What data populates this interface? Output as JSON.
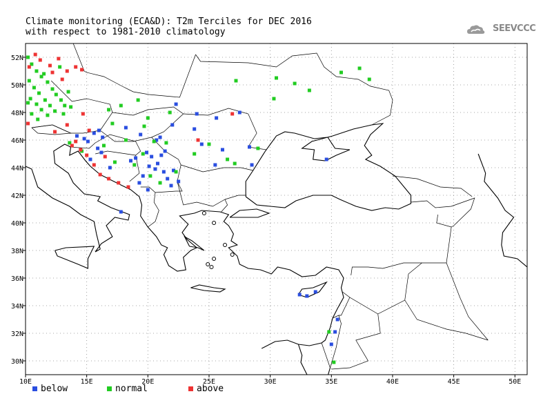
{
  "title": {
    "line1": "Climate monitoring (ECA&D): T2m Terciles for DEC 2016",
    "line2": "with respect to 1981-2010 climatology"
  },
  "logo": {
    "text": "SEEVCCC",
    "icon": "cloud-icon"
  },
  "colors": {
    "below": "#2a4ee0",
    "normal": "#22cc22",
    "above": "#ee3333",
    "frame": "#000000",
    "grid": "#888888"
  },
  "legend": [
    {
      "key": "below",
      "label": "below"
    },
    {
      "key": "normal",
      "label": "normal"
    },
    {
      "key": "above",
      "label": "above"
    }
  ],
  "map": {
    "lon_range": [
      10,
      51
    ],
    "lat_range": [
      29,
      53
    ],
    "x_ticks": [
      {
        "value": 10,
        "label": "10E"
      },
      {
        "value": 15,
        "label": "15E"
      },
      {
        "value": 20,
        "label": "20E"
      },
      {
        "value": 25,
        "label": "25E"
      },
      {
        "value": 30,
        "label": "30E"
      },
      {
        "value": 35,
        "label": "35E"
      },
      {
        "value": 40,
        "label": "40E"
      },
      {
        "value": 45,
        "label": "45E"
      },
      {
        "value": 50,
        "label": "50E"
      }
    ],
    "y_ticks": [
      {
        "value": 30,
        "label": "30N"
      },
      {
        "value": 32,
        "label": "32N"
      },
      {
        "value": 34,
        "label": "34N"
      },
      {
        "value": 36,
        "label": "36N"
      },
      {
        "value": 38,
        "label": "38N"
      },
      {
        "value": 40,
        "label": "40N"
      },
      {
        "value": 42,
        "label": "42N"
      },
      {
        "value": 44,
        "label": "44N"
      },
      {
        "value": 46,
        "label": "46N"
      },
      {
        "value": 48,
        "label": "48N"
      },
      {
        "value": 50,
        "label": "50N"
      },
      {
        "value": 52,
        "label": "52N"
      }
    ],
    "grid": "dotted"
  },
  "stations": {
    "below": [
      [
        14.2,
        46.3
      ],
      [
        14.8,
        46.1
      ],
      [
        15.1,
        45.9
      ],
      [
        15.6,
        46.5
      ],
      [
        16.0,
        46.7
      ],
      [
        16.3,
        46.2
      ],
      [
        15.9,
        45.4
      ],
      [
        16.2,
        45.1
      ],
      [
        15.3,
        44.6
      ],
      [
        16.9,
        44.0
      ],
      [
        17.8,
        40.8
      ],
      [
        18.6,
        44.5
      ],
      [
        19.0,
        44.7
      ],
      [
        19.3,
        42.9
      ],
      [
        19.9,
        45.1
      ],
      [
        20.3,
        44.8
      ],
      [
        20.1,
        44.1
      ],
      [
        20.6,
        43.9
      ],
      [
        20.8,
        44.3
      ],
      [
        21.1,
        44.9
      ],
      [
        21.3,
        43.7
      ],
      [
        21.6,
        43.2
      ],
      [
        21.9,
        42.7
      ],
      [
        22.1,
        43.8
      ],
      [
        22.5,
        43.0
      ],
      [
        20.0,
        42.4
      ],
      [
        19.6,
        43.4
      ],
      [
        21.4,
        45.2
      ],
      [
        22.3,
        48.6
      ],
      [
        22.0,
        47.1
      ],
      [
        24.0,
        47.9
      ],
      [
        25.6,
        47.6
      ],
      [
        23.8,
        46.8
      ],
      [
        24.4,
        45.7
      ],
      [
        25.5,
        44.2
      ],
      [
        26.1,
        45.3
      ],
      [
        27.5,
        48.0
      ],
      [
        28.5,
        44.2
      ],
      [
        28.3,
        45.5
      ],
      [
        34.6,
        44.6
      ],
      [
        32.4,
        34.8
      ],
      [
        33.0,
        34.7
      ],
      [
        33.7,
        35.0
      ],
      [
        35.0,
        31.2
      ],
      [
        35.3,
        32.1
      ],
      [
        35.5,
        33.0
      ],
      [
        21.0,
        46.2
      ],
      [
        19.4,
        46.4
      ],
      [
        18.2,
        46.9
      ],
      [
        20.7,
        46.0
      ]
    ],
    "normal": [
      [
        10.2,
        52.0
      ],
      [
        10.5,
        51.5
      ],
      [
        10.9,
        51.0
      ],
      [
        11.3,
        50.6
      ],
      [
        11.8,
        50.2
      ],
      [
        12.2,
        49.7
      ],
      [
        12.5,
        49.3
      ],
      [
        12.9,
        48.9
      ],
      [
        13.2,
        48.5
      ],
      [
        10.3,
        50.3
      ],
      [
        10.7,
        49.8
      ],
      [
        11.1,
        49.4
      ],
      [
        11.6,
        48.9
      ],
      [
        12.0,
        48.5
      ],
      [
        12.4,
        48.1
      ],
      [
        10.4,
        49.0
      ],
      [
        10.9,
        48.6
      ],
      [
        11.3,
        48.2
      ],
      [
        11.8,
        47.8
      ],
      [
        10.5,
        47.9
      ],
      [
        11.0,
        47.5
      ],
      [
        13.1,
        47.9
      ],
      [
        13.7,
        48.4
      ],
      [
        10.2,
        48.7
      ],
      [
        11.5,
        50.8
      ],
      [
        12.8,
        51.3
      ],
      [
        13.5,
        49.5
      ],
      [
        17.8,
        48.5
      ],
      [
        19.2,
        48.9
      ],
      [
        20.0,
        47.6
      ],
      [
        20.5,
        45.9
      ],
      [
        21.5,
        45.8
      ],
      [
        18.2,
        46.0
      ],
      [
        17.1,
        47.2
      ],
      [
        16.4,
        45.6
      ],
      [
        17.3,
        44.4
      ],
      [
        18.9,
        44.2
      ],
      [
        19.6,
        45.0
      ],
      [
        20.2,
        43.4
      ],
      [
        21.0,
        42.9
      ],
      [
        22.3,
        43.7
      ],
      [
        23.8,
        45.0
      ],
      [
        26.5,
        44.6
      ],
      [
        27.1,
        44.3
      ],
      [
        27.2,
        50.3
      ],
      [
        30.5,
        50.5
      ],
      [
        32.0,
        50.1
      ],
      [
        35.8,
        50.9
      ],
      [
        37.3,
        51.2
      ],
      [
        38.1,
        50.4
      ],
      [
        33.2,
        49.6
      ],
      [
        30.3,
        49.0
      ],
      [
        29.0,
        45.4
      ],
      [
        25.0,
        45.7
      ],
      [
        21.8,
        48.0
      ],
      [
        19.7,
        47.0
      ],
      [
        16.8,
        48.2
      ],
      [
        14.6,
        45.2
      ],
      [
        13.6,
        45.8
      ],
      [
        35.2,
        29.9
      ],
      [
        34.8,
        32.1
      ]
    ],
    "above": [
      [
        10.3,
        51.3
      ],
      [
        11.2,
        51.8
      ],
      [
        12.0,
        51.4
      ],
      [
        12.7,
        51.9
      ],
      [
        13.4,
        51.0
      ],
      [
        14.1,
        51.3
      ],
      [
        14.6,
        51.1
      ],
      [
        10.8,
        52.2
      ],
      [
        12.2,
        50.9
      ],
      [
        13.0,
        50.4
      ],
      [
        10.2,
        47.2
      ],
      [
        13.4,
        47.1
      ],
      [
        13.8,
        45.6
      ],
      [
        14.1,
        45.9
      ],
      [
        14.5,
        45.3
      ],
      [
        15.0,
        44.9
      ],
      [
        15.6,
        44.2
      ],
      [
        16.1,
        43.5
      ],
      [
        16.8,
        43.2
      ],
      [
        17.6,
        42.9
      ],
      [
        18.4,
        42.6
      ],
      [
        15.2,
        46.7
      ],
      [
        16.5,
        44.8
      ],
      [
        26.9,
        47.9
      ],
      [
        24.1,
        46.0
      ],
      [
        12.4,
        46.6
      ],
      [
        14.7,
        47.9
      ]
    ]
  }
}
